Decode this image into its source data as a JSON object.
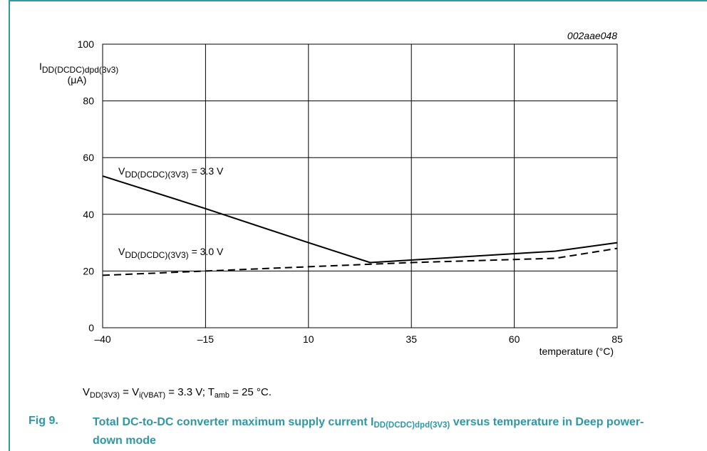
{
  "figure": {
    "ref_id": "002aae048",
    "y_axis": {
      "sym": "I",
      "sub": "DD(DCDC)dpd(3v3)",
      "unit": "(μA)"
    },
    "x_axis_label": "temperature (°C)",
    "conditions": {
      "p1": "V",
      "s1": "DD(3V3)",
      "p2": " = V",
      "s2": "i(VBAT)",
      "p3": " = 3.3 V; T",
      "s3": "amb",
      "p4": " = 25 °C."
    },
    "caption_number": "Fig 9.",
    "caption": {
      "pre": "Total DC-to-DC converter maximum supply current I",
      "sub": "DD(DCDC)dpd(3V3)",
      "post": " versus temperature in Deep power-down mode"
    }
  },
  "chart_data": {
    "type": "line",
    "xlim": [
      -40,
      85
    ],
    "ylim": [
      0,
      100
    ],
    "x_ticks": [
      -40,
      -15,
      10,
      35,
      60,
      85
    ],
    "x_tick_labels": [
      "–40",
      "–15",
      "10",
      "35",
      "60",
      "85"
    ],
    "y_ticks": [
      0,
      20,
      40,
      60,
      80,
      100
    ],
    "y_tick_labels": [
      "0",
      "20",
      "40",
      "60",
      "80",
      "100"
    ],
    "grid": true,
    "series": [
      {
        "name": "VDD(DCDC)(3V3) = 3.3 V",
        "label_parts": {
          "pre": "V",
          "sub": "DD(DCDC)(3V3)",
          "post": " = 3.3 V"
        },
        "style": "solid",
        "x": [
          -40,
          -15,
          10,
          25,
          70,
          85
        ],
        "y": [
          53.5,
          42,
          30,
          23,
          27,
          30
        ]
      },
      {
        "name": "VDD(DCDC)(3V3) = 3.0 V",
        "label_parts": {
          "pre": "V",
          "sub": "DD(DCDC)(3V3)",
          "post": " = 3.0 V"
        },
        "style": "dashed",
        "x": [
          -40,
          -15,
          10,
          35,
          70,
          85
        ],
        "y": [
          18.5,
          20,
          21.5,
          23,
          24.5,
          28
        ]
      }
    ]
  }
}
